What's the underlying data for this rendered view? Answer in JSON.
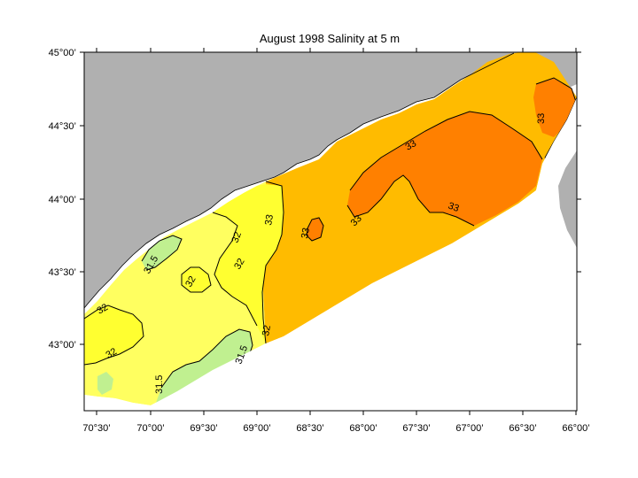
{
  "title": "August 1998  Salinity at 5 m",
  "colors": {
    "land": "#b0b0b0",
    "frame_bg": "#ffffff",
    "band_31_5": "#c0f090",
    "band_32": "#ffff60",
    "band_32b": "#ffff30",
    "band_33": "#ffbb00",
    "band_33b": "#ff8000"
  },
  "axes": {
    "x_ticks": [
      "70°30’",
      "70°00’",
      "69°30’",
      "69°00’",
      "68°30’",
      "68°00’",
      "67°30’",
      "67°00’",
      "66°30’",
      "66°00’"
    ],
    "y_ticks": [
      "45°00’",
      "44°30’",
      "44°00’",
      "43°30’",
      "43°00’"
    ]
  },
  "contour_labels": [
    "31.5",
    "32",
    "32",
    "32",
    "32",
    "32",
    "31.5",
    "31.5",
    "32",
    "33",
    "33",
    "33",
    "33",
    "33",
    "33"
  ]
}
